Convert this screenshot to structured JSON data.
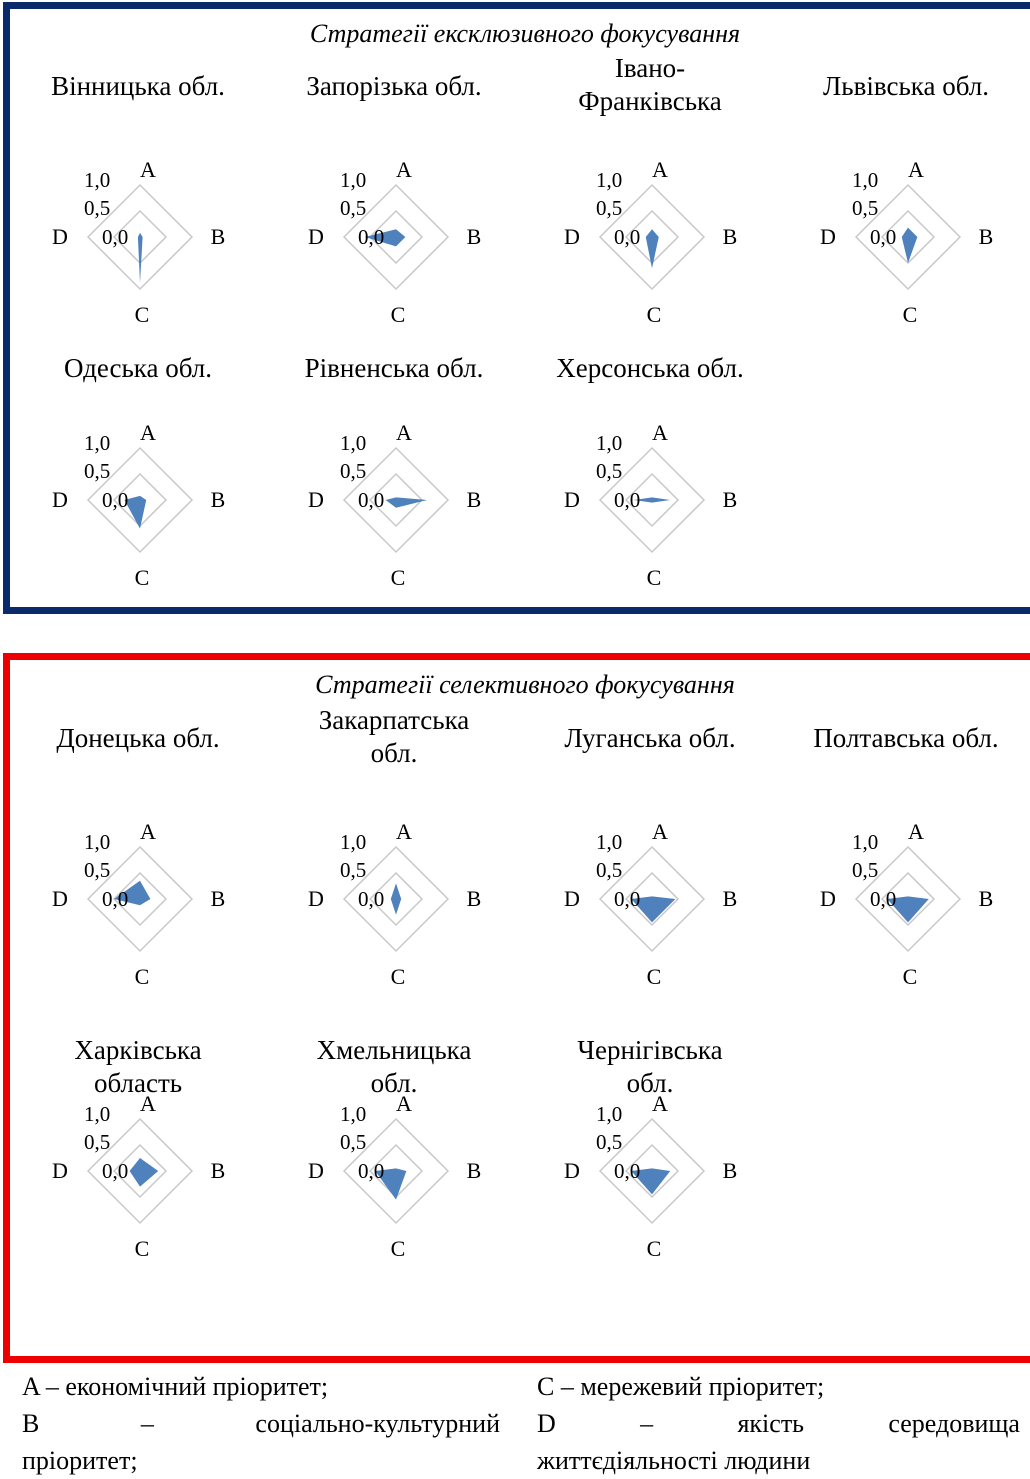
{
  "panels": [
    {
      "id": "exclusive",
      "title": "Стратегії ексклюзивного фокусування",
      "border_color": "#0b2a6b"
    },
    {
      "id": "selective",
      "title": "Стратегії селективного фокусування",
      "border_color": "#ee0000"
    }
  ],
  "chart_data": [
    {
      "type": "radar",
      "panel": "exclusive",
      "title": "Вінницька обл.",
      "axes": [
        "A",
        "B",
        "C",
        "D"
      ],
      "ticks": [
        "1,0",
        "0,5",
        "0,0"
      ],
      "rlim": [
        0,
        1
      ],
      "values": [
        0.08,
        0.05,
        0.88,
        0.04
      ],
      "color": "#4f81bd"
    },
    {
      "type": "radar",
      "panel": "exclusive",
      "title": "Запорізька обл.",
      "axes": [
        "A",
        "B",
        "C",
        "D"
      ],
      "ticks": [
        "1,0",
        "0,5",
        "0,0"
      ],
      "rlim": [
        0,
        1
      ],
      "values": [
        0.15,
        0.18,
        0.18,
        0.6
      ],
      "color": "#4f81bd"
    },
    {
      "type": "radar",
      "panel": "exclusive",
      "title": "Івано-Франківська",
      "axes": [
        "A",
        "B",
        "C",
        "D"
      ],
      "ticks": [
        "1,0",
        "0,5",
        "0,0"
      ],
      "rlim": [
        0,
        1
      ],
      "values": [
        0.15,
        0.13,
        0.6,
        0.12
      ],
      "color": "#4f81bd"
    },
    {
      "type": "radar",
      "panel": "exclusive",
      "title": "Львівська обл.",
      "axes": [
        "A",
        "B",
        "C",
        "D"
      ],
      "ticks": [
        "1,0",
        "0,5",
        "0,0"
      ],
      "rlim": [
        0,
        1
      ],
      "values": [
        0.18,
        0.18,
        0.5,
        0.12
      ],
      "color": "#4f81bd"
    },
    {
      "type": "radar",
      "panel": "exclusive",
      "title": "Одеська обл.",
      "axes": [
        "A",
        "B",
        "C",
        "D"
      ],
      "ticks": [
        "1,0",
        "0,5",
        "0,0"
      ],
      "rlim": [
        0,
        1
      ],
      "values": [
        0.08,
        0.12,
        0.55,
        0.3
      ],
      "color": "#4f81bd"
    },
    {
      "type": "radar",
      "panel": "exclusive",
      "title": "Рівненська обл.",
      "axes": [
        "A",
        "B",
        "C",
        "D"
      ],
      "ticks": [
        "1,0",
        "0,5",
        "0,0"
      ],
      "rlim": [
        0,
        1
      ],
      "values": [
        0.05,
        0.6,
        0.15,
        0.2
      ],
      "color": "#4f81bd"
    },
    {
      "type": "radar",
      "panel": "exclusive",
      "title": "Херсонська обл.",
      "axes": [
        "A",
        "B",
        "C",
        "D"
      ],
      "ticks": [
        "1,0",
        "0,5",
        "0,0"
      ],
      "rlim": [
        0,
        1
      ],
      "values": [
        0.05,
        0.35,
        0.05,
        0.35
      ],
      "color": "#4f81bd"
    },
    {
      "type": "radar",
      "panel": "selective",
      "title": "Донецька обл.",
      "axes": [
        "A",
        "B",
        "C",
        "D"
      ],
      "ticks": [
        "1,0",
        "0,5",
        "0,0"
      ],
      "rlim": [
        0,
        1
      ],
      "values": [
        0.35,
        0.2,
        0.12,
        0.5
      ],
      "color": "#4f81bd"
    },
    {
      "type": "radar",
      "panel": "selective",
      "title": "Закарпатська обл.",
      "axes": [
        "A",
        "B",
        "C",
        "D"
      ],
      "ticks": [
        "1,0",
        "0,5",
        "0,0"
      ],
      "rlim": [
        0,
        1
      ],
      "values": [
        0.3,
        0.1,
        0.3,
        0.1
      ],
      "color": "#4f81bd"
    },
    {
      "type": "radar",
      "panel": "selective",
      "title": "Луганська обл.",
      "axes": [
        "A",
        "B",
        "C",
        "D"
      ],
      "ticks": [
        "1,0",
        "0,5",
        "0,0"
      ],
      "rlim": [
        0,
        1
      ],
      "values": [
        0.05,
        0.45,
        0.45,
        0.4
      ],
      "color": "#4f81bd"
    },
    {
      "type": "radar",
      "panel": "selective",
      "title": "Полтавська обл.",
      "axes": [
        "A",
        "B",
        "C",
        "D"
      ],
      "ticks": [
        "1,0",
        "0,5",
        "0,0"
      ],
      "rlim": [
        0,
        1
      ],
      "values": [
        0.05,
        0.4,
        0.45,
        0.4
      ],
      "color": "#4f81bd"
    },
    {
      "type": "radar",
      "panel": "selective",
      "title": "Харківська область",
      "axes": [
        "A",
        "B",
        "C",
        "D"
      ],
      "ticks": [
        "1,0",
        "0,5",
        "0,0"
      ],
      "rlim": [
        0,
        1
      ],
      "values": [
        0.25,
        0.35,
        0.3,
        0.2
      ],
      "color": "#4f81bd"
    },
    {
      "type": "radar",
      "panel": "selective",
      "title": "Хмельницька обл.",
      "axes": [
        "A",
        "B",
        "C",
        "D"
      ],
      "ticks": [
        "1,0",
        "0,5",
        "0,0"
      ],
      "rlim": [
        0,
        1
      ],
      "values": [
        0.05,
        0.2,
        0.55,
        0.4
      ],
      "color": "#4f81bd"
    },
    {
      "type": "radar",
      "panel": "selective",
      "title": "Чернігівська обл.",
      "axes": [
        "A",
        "B",
        "C",
        "D"
      ],
      "ticks": [
        "1,0",
        "0,5",
        "0,0"
      ],
      "rlim": [
        0,
        1
      ],
      "values": [
        0.05,
        0.35,
        0.45,
        0.4
      ],
      "color": "#4f81bd"
    }
  ],
  "legend": {
    "a": "A – економічний пріоритет;",
    "c": "C – мережевий пріоритет;",
    "b_line1": [
      "B",
      "–",
      "соціально-культурний"
    ],
    "b_line2": "пріоритет;",
    "d_line1": [
      "D",
      "–",
      "якість",
      "середовища"
    ],
    "d_line2": "життєдіяльності людини"
  }
}
